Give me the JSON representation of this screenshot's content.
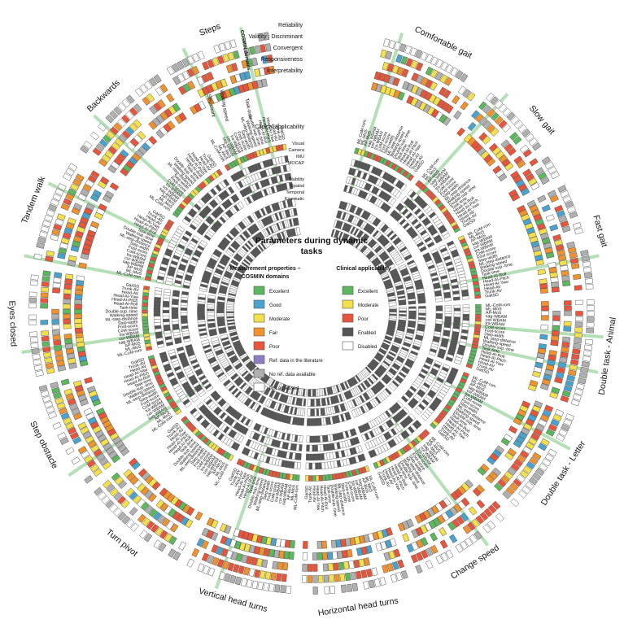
{
  "title": "Parameters during dynamic tasks",
  "colors": {
    "excellent": "#5cb85c",
    "good": "#4aa3cf",
    "moderate": "#f4e04d",
    "fair": "#f0922d",
    "poor": "#e8553a",
    "ref_lit": "#8e7cc3",
    "no_ref": "#b0b0b0",
    "not_assessed": "#ffffff",
    "enabled": "#555555",
    "disabled": "#ffffff",
    "highlight": "#6cc070"
  },
  "legend_cosmin": {
    "title": "Measurement properties – COSMIN domains",
    "items": [
      {
        "label": "Excellent",
        "color": "excellent"
      },
      {
        "label": "Good",
        "color": "good"
      },
      {
        "label": "Moderate",
        "color": "moderate"
      },
      {
        "label": "Fair",
        "color": "fair"
      },
      {
        "label": "Poor",
        "color": "poor"
      },
      {
        "label": "Ref. data in the literature",
        "color": "ref_lit"
      },
      {
        "label": "No ref. data available",
        "color": "no_ref"
      },
      {
        "label": "Not assessed",
        "color": "not_assessed"
      }
    ]
  },
  "legend_clinical": {
    "title": "Clinical applicability",
    "items": [
      {
        "label": "Excellent",
        "color": "excellent"
      },
      {
        "label": "Moderate",
        "color": "moderate"
      },
      {
        "label": "Poor",
        "color": "poor"
      },
      {
        "label": "Enabled",
        "color": "enabled"
      },
      {
        "label": "Disabled",
        "color": "disabled"
      }
    ]
  },
  "cosmin_header": {
    "domains_label": "COSMIN domains",
    "rows": [
      "Reliability",
      "Validity : Discriminant",
      "Convergent",
      "Responsiveness",
      "Interpretability"
    ],
    "clinical_rows": [
      "Clinical applicability",
      "Visual",
      "Camera",
      "IMU",
      "MOCAP",
      "Stability",
      "Spatial",
      "Temporal",
      "Kinematic"
    ],
    "walking_speed": "Walking speed",
    "task_time": "Task-time",
    "step_count": "Step count"
  },
  "tasks": [
    "Comfortable gait",
    "Slow gait",
    "Fast gait",
    "Double task - Animal",
    "Double task - Letter",
    "Change speed",
    "Horizontal head turns",
    "Vertical head turns",
    "Turn pivot",
    "Step obstacle",
    "Eyes closed",
    "Tandem walk",
    "Backwards",
    "Steps"
  ],
  "parameters": [
    "ML-CoM-rom",
    "ML-MoS",
    "AP-MoS",
    "sag-WBAM",
    "cor-WBAM",
    "tra-WBAM",
    "CoM-score",
    "Foot-score",
    "Step-width",
    "ML-step-distance",
    "Walking-speed",
    "Double-sup.-time",
    "Task-time",
    "Head-AI-Roll",
    "Head-AI-Pitch",
    "Head-AI-Yaw",
    "Head-AV",
    "Trunk-AV",
    "GaitSD"
  ]
}
